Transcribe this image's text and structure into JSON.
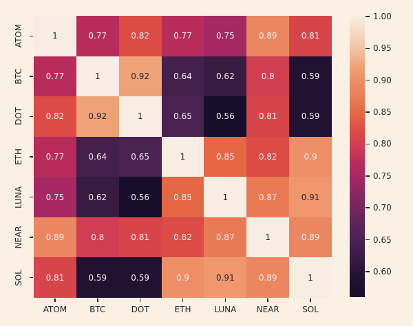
{
  "figure": {
    "background_color": "#FAF0E4"
  },
  "chart_data": {
    "type": "heatmap",
    "title": "",
    "xlabel": "",
    "ylabel": "",
    "categories": [
      "ATOM",
      "BTC",
      "DOT",
      "ETH",
      "LUNA",
      "NEAR",
      "SOL"
    ],
    "matrix": [
      [
        1,
        0.77,
        0.82,
        0.77,
        0.75,
        0.89,
        0.81
      ],
      [
        0.77,
        1,
        0.92,
        0.64,
        0.62,
        0.8,
        0.59
      ],
      [
        0.82,
        0.92,
        1,
        0.65,
        0.56,
        0.81,
        0.59
      ],
      [
        0.77,
        0.64,
        0.65,
        1,
        0.85,
        0.82,
        0.9
      ],
      [
        0.75,
        0.62,
        0.56,
        0.85,
        1,
        0.87,
        0.91
      ],
      [
        0.89,
        0.8,
        0.81,
        0.82,
        0.87,
        1,
        0.89
      ],
      [
        0.81,
        0.59,
        0.59,
        0.9,
        0.91,
        0.89,
        1
      ]
    ],
    "vmin": 0.56,
    "vmax": 1.0,
    "annotations_on": true,
    "grid_on": false,
    "colorbar": {
      "position": "right",
      "tick_values": [
        1.0,
        0.95,
        0.9,
        0.85,
        0.8,
        0.75,
        0.7,
        0.65,
        0.6
      ],
      "tick_labels": [
        "1.00",
        "0.95",
        "0.90",
        "0.85",
        "0.80",
        "0.75",
        "0.70",
        "0.65",
        "0.60"
      ]
    },
    "colormap": {
      "name": "rocket",
      "stops": [
        [
          0.56,
          "#160F2B"
        ],
        [
          0.59,
          "#211232"
        ],
        [
          0.62,
          "#381B41"
        ],
        [
          0.65,
          "#4A2353"
        ],
        [
          0.7,
          "#75265E"
        ],
        [
          0.75,
          "#A62963"
        ],
        [
          0.77,
          "#B82C5C"
        ],
        [
          0.8,
          "#D23E51"
        ],
        [
          0.82,
          "#DC4B46"
        ],
        [
          0.85,
          "#E56744"
        ],
        [
          0.87,
          "#E97B54"
        ],
        [
          0.89,
          "#EB8760"
        ],
        [
          0.9,
          "#ED8E67"
        ],
        [
          0.91,
          "#F0976F"
        ],
        [
          0.92,
          "#EFA178"
        ],
        [
          0.95,
          "#F3C3A2"
        ],
        [
          1.0,
          "#F7EDE2"
        ]
      ]
    },
    "annotation_colors": {
      "dark": "#262626",
      "light": "#F2EDF0"
    },
    "tick_color": "#262626"
  }
}
